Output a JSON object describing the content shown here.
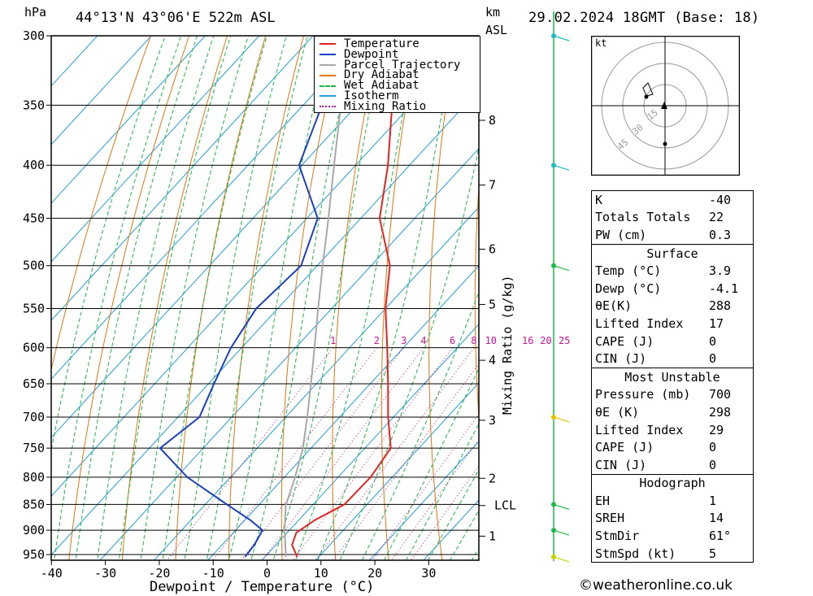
{
  "header": {
    "pressure_unit": "hPa",
    "location": "44°13'N  43°06'E  522m  ASL",
    "height_unit_km": "km",
    "height_unit_asl": "ASL",
    "datetime": "29.02.2024  18GMT  (Base: 18)"
  },
  "chart_data": {
    "type": "skew-t",
    "xlabel": "Dewpoint / Temperature (°C)",
    "ylabel": "hPa",
    "mixing_ratio_axis_label": "Mixing Ratio (g/kg)",
    "xlim": [
      -40,
      38
    ],
    "pressure_range": [
      960,
      300
    ],
    "pressure_ticks": [
      300,
      350,
      400,
      450,
      500,
      550,
      600,
      650,
      700,
      750,
      800,
      850,
      900,
      950
    ],
    "temperature_ticks": [
      -40,
      -30,
      -20,
      -10,
      0,
      10,
      20,
      30
    ],
    "km_ticks": [
      {
        "label": "8",
        "p": 362
      },
      {
        "label": "7",
        "p": 418
      },
      {
        "label": "6",
        "p": 482
      },
      {
        "label": "5",
        "p": 545
      },
      {
        "label": "4",
        "p": 617
      },
      {
        "label": "3",
        "p": 705
      },
      {
        "label": "2",
        "p": 802
      },
      {
        "label": "LCL",
        "p": 852
      },
      {
        "label": "1",
        "p": 912
      }
    ],
    "mixing_ratio_labels": [
      "1",
      "2",
      "3",
      "4",
      "6",
      "8",
      "10",
      "16",
      "20",
      "25"
    ],
    "mixing_ratio_values": [
      1,
      2,
      3,
      4,
      6,
      8,
      10,
      16,
      20,
      25
    ],
    "legend": [
      "Temperature",
      "Dewpoint",
      "Parcel Trajectory",
      "Dry Adiabat",
      "Wet Adiabat",
      "Isotherm",
      "Mixing Ratio"
    ],
    "series": [
      {
        "name": "Temperature",
        "color": "#e8231f",
        "points": [
          [
            955,
            6.0
          ],
          [
            930,
            3.0
          ],
          [
            905,
            1.7
          ],
          [
            880,
            3.0
          ],
          [
            850,
            5.8
          ],
          [
            800,
            6.0
          ],
          [
            750,
            4.8
          ],
          [
            700,
            -1.0
          ],
          [
            650,
            -6.7
          ],
          [
            600,
            -13.0
          ],
          [
            550,
            -20.0
          ],
          [
            500,
            -26.5
          ],
          [
            450,
            -36.5
          ],
          [
            400,
            -44.0
          ],
          [
            350,
            -53.5
          ],
          [
            300,
            -63.0
          ]
        ]
      },
      {
        "name": "Dewpoint",
        "color": "#1a3fc4",
        "points": [
          [
            955,
            -3.7
          ],
          [
            930,
            -4.0
          ],
          [
            900,
            -5.0
          ],
          [
            880,
            -9.0
          ],
          [
            850,
            -16.0
          ],
          [
            800,
            -28.0
          ],
          [
            750,
            -38.0
          ],
          [
            700,
            -36.0
          ],
          [
            650,
            -39.0
          ],
          [
            600,
            -42.0
          ],
          [
            550,
            -44.0
          ],
          [
            500,
            -43.0
          ],
          [
            450,
            -48.0
          ],
          [
            400,
            -60.5
          ],
          [
            350,
            -66.5
          ],
          [
            300,
            -75.0
          ]
        ]
      },
      {
        "name": "Parcel Trajectory",
        "color": "#a8a8a8",
        "points": [
          [
            955,
            3.9
          ],
          [
            900,
            -0.9
          ],
          [
            852,
            -4.9
          ],
          [
            800,
            -8.0
          ],
          [
            750,
            -11.5
          ],
          [
            700,
            -16.0
          ],
          [
            650,
            -21.0
          ],
          [
            600,
            -26.5
          ],
          [
            550,
            -32.5
          ],
          [
            500,
            -39.0
          ],
          [
            450,
            -46.0
          ],
          [
            400,
            -54.0
          ],
          [
            350,
            -63.0
          ],
          [
            300,
            -73.0
          ]
        ]
      }
    ],
    "hodograph": {
      "unit": "kt",
      "rings": [
        "15",
        "30",
        "45"
      ]
    },
    "wind_barbs": [
      {
        "p": 955,
        "color": "#c8d400"
      },
      {
        "p": 900,
        "color": "#1db845"
      },
      {
        "p": 850,
        "color": "#1db845"
      },
      {
        "p": 700,
        "color": "#e8c000"
      },
      {
        "p": 500,
        "color": "#1db845"
      },
      {
        "p": 400,
        "color": "#1eb8c8"
      },
      {
        "p": 300,
        "color": "#1eb8c8"
      }
    ]
  },
  "indices": {
    "general": [
      {
        "label": "K",
        "value": "-40"
      },
      {
        "label": "Totals Totals",
        "value": "22"
      },
      {
        "label": "PW (cm)",
        "value": "0.3"
      }
    ],
    "surface": {
      "title": "Surface",
      "rows": [
        {
          "label": "Temp (°C)",
          "value": "3.9"
        },
        {
          "label": "Dewp (°C)",
          "value": "-4.1"
        },
        {
          "label": "θE(K)",
          "value": "288"
        },
        {
          "label": "Lifted Index",
          "value": "17"
        },
        {
          "label": "CAPE (J)",
          "value": "0"
        },
        {
          "label": "CIN (J)",
          "value": "0"
        }
      ]
    },
    "most_unstable": {
      "title": "Most Unstable",
      "rows": [
        {
          "label": "Pressure (mb)",
          "value": "700"
        },
        {
          "label": "θE (K)",
          "value": "298"
        },
        {
          "label": "Lifted Index",
          "value": "29"
        },
        {
          "label": "CAPE (J)",
          "value": "0"
        },
        {
          "label": "CIN (J)",
          "value": "0"
        }
      ]
    },
    "hodograph": {
      "title": "Hodograph",
      "rows": [
        {
          "label": "EH",
          "value": "1"
        },
        {
          "label": "SREH",
          "value": "14"
        },
        {
          "label": "StmDir",
          "value": "61°"
        },
        {
          "label": "StmSpd (kt)",
          "value": "5"
        }
      ]
    }
  },
  "footer": {
    "credit": "©weatheronline.co.uk"
  },
  "colors": {
    "temperature": "#e8231f",
    "dewpoint": "#1a3fc4",
    "parcel": "#a8a8a8",
    "dry_adiabat": "#e8740f",
    "wet_adiabat": "#1db845",
    "isotherm": "#1e9ee0",
    "mixing_ratio": "#d0119a"
  }
}
